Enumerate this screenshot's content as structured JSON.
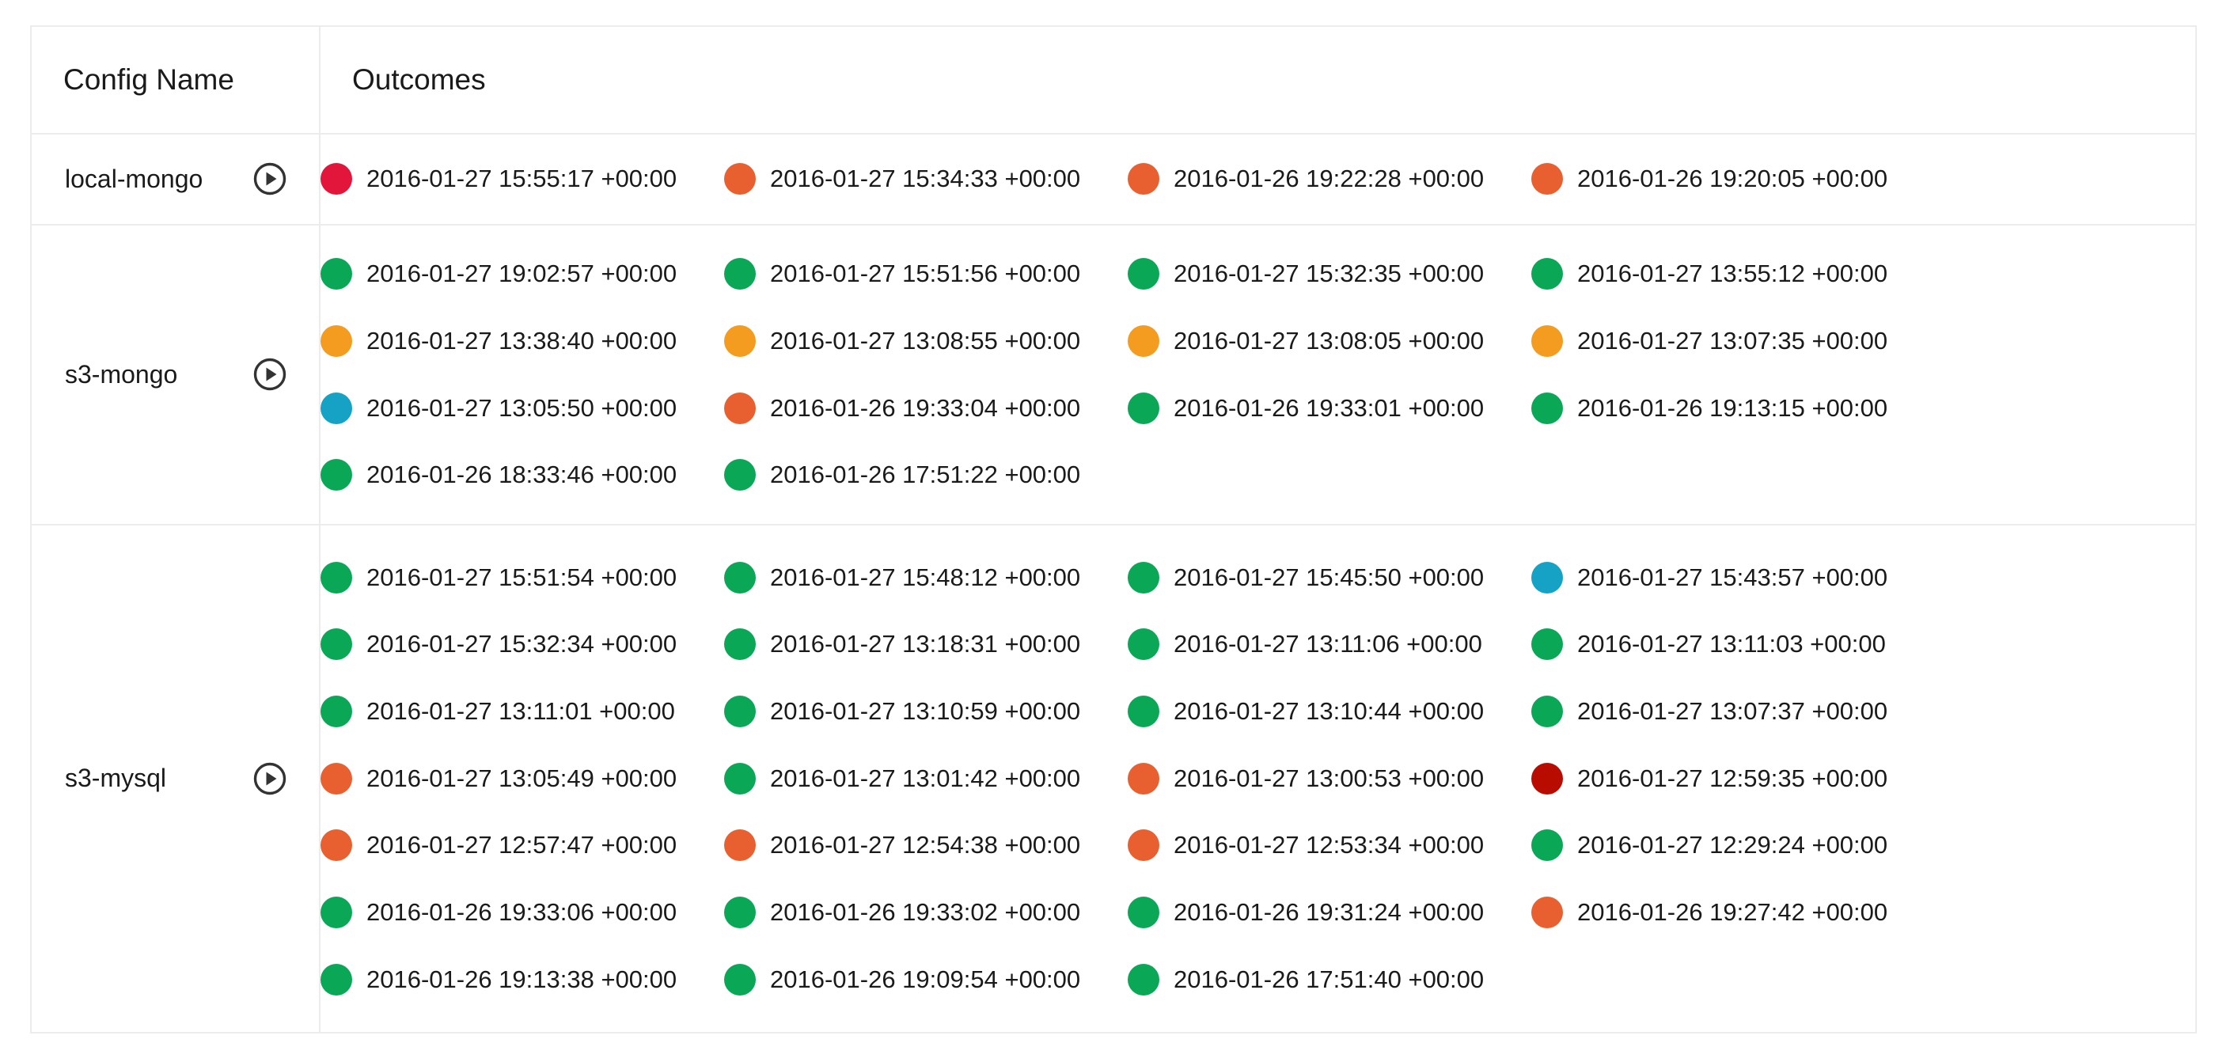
{
  "header": {
    "config_name": "Config Name",
    "outcomes": "Outcomes"
  },
  "status_colors": {
    "success": "#0aa856",
    "warning": "#f39c1f",
    "fail": "#e8602f",
    "error": "#e2163b",
    "running": "#16a2c4",
    "fatal": "#b80c00"
  },
  "configs": [
    {
      "name": "local-mongo",
      "run_icon": "play-circle-icon",
      "outcomes": [
        {
          "time": "2016-01-27 15:55:17 +00:00",
          "status": "error"
        },
        {
          "time": "2016-01-27 15:34:33 +00:00",
          "status": "fail"
        },
        {
          "time": "2016-01-26 19:22:28 +00:00",
          "status": "fail"
        },
        {
          "time": "2016-01-26 19:20:05 +00:00",
          "status": "fail"
        }
      ]
    },
    {
      "name": "s3-mongo",
      "run_icon": "play-circle-icon",
      "outcomes": [
        {
          "time": "2016-01-27 19:02:57 +00:00",
          "status": "success"
        },
        {
          "time": "2016-01-27 15:51:56 +00:00",
          "status": "success"
        },
        {
          "time": "2016-01-27 15:32:35 +00:00",
          "status": "success"
        },
        {
          "time": "2016-01-27 13:55:12 +00:00",
          "status": "success"
        },
        {
          "time": "2016-01-27 13:38:40 +00:00",
          "status": "warning"
        },
        {
          "time": "2016-01-27 13:08:55 +00:00",
          "status": "warning"
        },
        {
          "time": "2016-01-27 13:08:05 +00:00",
          "status": "warning"
        },
        {
          "time": "2016-01-27 13:07:35 +00:00",
          "status": "warning"
        },
        {
          "time": "2016-01-27 13:05:50 +00:00",
          "status": "running"
        },
        {
          "time": "2016-01-26 19:33:04 +00:00",
          "status": "fail"
        },
        {
          "time": "2016-01-26 19:33:01 +00:00",
          "status": "success"
        },
        {
          "time": "2016-01-26 19:13:15 +00:00",
          "status": "success"
        },
        {
          "time": "2016-01-26 18:33:46 +00:00",
          "status": "success"
        },
        {
          "time": "2016-01-26 17:51:22 +00:00",
          "status": "success"
        }
      ]
    },
    {
      "name": "s3-mysql",
      "run_icon": "play-circle-icon",
      "outcomes": [
        {
          "time": "2016-01-27 15:51:54 +00:00",
          "status": "success"
        },
        {
          "time": "2016-01-27 15:48:12 +00:00",
          "status": "success"
        },
        {
          "time": "2016-01-27 15:45:50 +00:00",
          "status": "success"
        },
        {
          "time": "2016-01-27 15:43:57 +00:00",
          "status": "running"
        },
        {
          "time": "2016-01-27 15:32:34 +00:00",
          "status": "success"
        },
        {
          "time": "2016-01-27 13:18:31 +00:00",
          "status": "success"
        },
        {
          "time": "2016-01-27 13:11:06 +00:00",
          "status": "success"
        },
        {
          "time": "2016-01-27 13:11:03 +00:00",
          "status": "success"
        },
        {
          "time": "2016-01-27 13:11:01 +00:00",
          "status": "success"
        },
        {
          "time": "2016-01-27 13:10:59 +00:00",
          "status": "success"
        },
        {
          "time": "2016-01-27 13:10:44 +00:00",
          "status": "success"
        },
        {
          "time": "2016-01-27 13:07:37 +00:00",
          "status": "success"
        },
        {
          "time": "2016-01-27 13:05:49 +00:00",
          "status": "fail"
        },
        {
          "time": "2016-01-27 13:01:42 +00:00",
          "status": "success"
        },
        {
          "time": "2016-01-27 13:00:53 +00:00",
          "status": "fail"
        },
        {
          "time": "2016-01-27 12:59:35 +00:00",
          "status": "fatal"
        },
        {
          "time": "2016-01-27 12:57:47 +00:00",
          "status": "fail"
        },
        {
          "time": "2016-01-27 12:54:38 +00:00",
          "status": "fail"
        },
        {
          "time": "2016-01-27 12:53:34 +00:00",
          "status": "fail"
        },
        {
          "time": "2016-01-27 12:29:24 +00:00",
          "status": "success"
        },
        {
          "time": "2016-01-26 19:33:06 +00:00",
          "status": "success"
        },
        {
          "time": "2016-01-26 19:33:02 +00:00",
          "status": "success"
        },
        {
          "time": "2016-01-26 19:31:24 +00:00",
          "status": "success"
        },
        {
          "time": "2016-01-26 19:27:42 +00:00",
          "status": "fail"
        },
        {
          "time": "2016-01-26 19:13:38 +00:00",
          "status": "success"
        },
        {
          "time": "2016-01-26 19:09:54 +00:00",
          "status": "success"
        },
        {
          "time": "2016-01-26 17:51:40 +00:00",
          "status": "success"
        }
      ]
    }
  ]
}
